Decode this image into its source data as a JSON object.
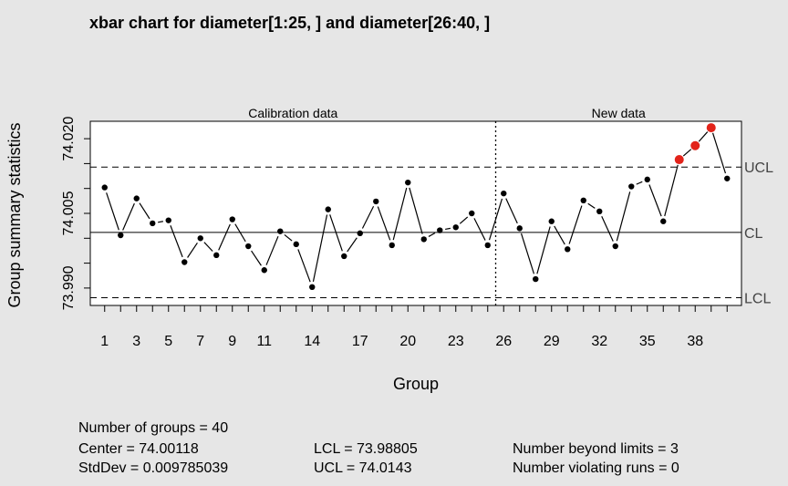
{
  "chart_data": {
    "type": "line",
    "title": "xbar chart for diameter[1:25, ] and diameter[26:40, ]",
    "xlabel": "Group",
    "ylabel": "Group summary statistics",
    "xlim": [
      0.1,
      40.9
    ],
    "ylim": [
      73.9865,
      74.0235
    ],
    "x_ticks": [
      1,
      2,
      3,
      4,
      5,
      6,
      7,
      8,
      9,
      10,
      11,
      12,
      13,
      14,
      15,
      16,
      17,
      18,
      19,
      20,
      21,
      22,
      23,
      24,
      25,
      26,
      27,
      28,
      29,
      30,
      31,
      32,
      33,
      34,
      35,
      36,
      37,
      38,
      39,
      40
    ],
    "x_tick_labels": [
      "1",
      "3",
      "5",
      "7",
      "9",
      "11",
      "14",
      "17",
      "20",
      "23",
      "26",
      "29",
      "32",
      "35",
      "38"
    ],
    "x_tick_label_positions": [
      1,
      3,
      5,
      7,
      9,
      11,
      14,
      17,
      20,
      23,
      26,
      29,
      32,
      35,
      38
    ],
    "y_ticks": [
      73.99,
      73.995,
      74.0,
      74.005,
      74.01,
      74.015,
      74.02
    ],
    "y_tick_labels": [
      "73.990",
      "74.005",
      "74.020"
    ],
    "y_tick_label_positions": [
      73.99,
      74.005,
      74.02
    ],
    "sections": [
      {
        "label": "Calibration data"
      },
      {
        "label": "New data"
      }
    ],
    "divider_x": 25.5,
    "center": 74.00118,
    "ucl": 74.0143,
    "lcl": 73.98805,
    "limit_labels": {
      "ucl": "UCL",
      "cl": "CL",
      "lcl": "LCL"
    },
    "series": [
      {
        "values": [
          74.0102,
          74.0006,
          74.008,
          74.003,
          74.0036,
          73.9952,
          74.0,
          73.9966,
          74.0038,
          73.9984,
          73.9936,
          74.0014,
          73.9988,
          73.9902,
          74.0058,
          73.9964,
          74.001,
          74.0074,
          73.9986,
          74.0112,
          73.9998,
          74.0016,
          74.0022,
          74.005,
          73.9986,
          74.009,
          74.002,
          73.9918,
          74.0034,
          73.9978,
          74.0076,
          74.0054,
          73.9984,
          74.0104,
          74.0118,
          74.0034,
          74.0158,
          74.0186,
          74.0222,
          74.012
        ]
      }
    ],
    "beyond_limits_groups": [
      37,
      38,
      39
    ],
    "colors": {
      "point": "#000000",
      "violation": "#e2231a",
      "background": "#e6e6e6",
      "panel": "#ffffff"
    }
  },
  "summary": {
    "num_groups": "Number of groups = 40",
    "center": "Center = 74.00118",
    "stddev": "StdDev = 0.009785039",
    "lcl": "LCL = 73.98805",
    "ucl": "UCL = 74.0143",
    "beyond_limits": "Number beyond limits = 3",
    "violating_runs": "Number violating runs = 0"
  }
}
